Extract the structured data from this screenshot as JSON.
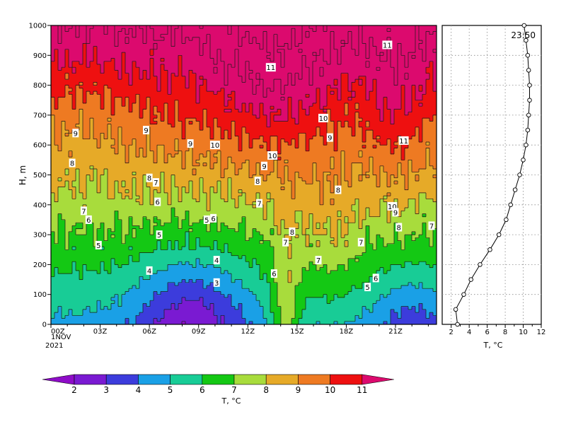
{
  "chart_data": [
    {
      "type": "heatmap",
      "ylabel": "H, m",
      "y_ticks": [
        0,
        100,
        200,
        300,
        400,
        500,
        600,
        700,
        800,
        900,
        1000
      ],
      "ylim": [
        0,
        1000
      ],
      "x_ticks": [
        "00Z",
        "03Z",
        "06Z",
        "09Z",
        "12Z",
        "15Z",
        "18Z",
        "21Z"
      ],
      "x_date_line1": "1NOV",
      "x_date_line2": "2021",
      "xlim_hours": [
        0,
        23.5
      ],
      "contour_labels": [
        {
          "t": 1.5,
          "h": 640,
          "v": "9"
        },
        {
          "t": 1.3,
          "h": 540,
          "v": "8"
        },
        {
          "t": 2.0,
          "h": 380,
          "v": "7"
        },
        {
          "t": 2.3,
          "h": 350,
          "v": "6"
        },
        {
          "t": 2.9,
          "h": 265,
          "v": "5"
        },
        {
          "t": 5.8,
          "h": 650,
          "v": "9"
        },
        {
          "t": 6.0,
          "h": 490,
          "v": "8"
        },
        {
          "t": 6.4,
          "h": 475,
          "v": "7"
        },
        {
          "t": 6.5,
          "h": 410,
          "v": "6"
        },
        {
          "t": 6.6,
          "h": 300,
          "v": "5"
        },
        {
          "t": 6.0,
          "h": 180,
          "v": "4"
        },
        {
          "t": 8.5,
          "h": 605,
          "v": "9"
        },
        {
          "t": 10.0,
          "h": 600,
          "v": "10"
        },
        {
          "t": 9.5,
          "h": 350,
          "v": "5"
        },
        {
          "t": 9.9,
          "h": 355,
          "v": "6"
        },
        {
          "t": 10.1,
          "h": 215,
          "v": "4"
        },
        {
          "t": 10.1,
          "h": 140,
          "v": "3"
        },
        {
          "t": 13.4,
          "h": 860,
          "v": "11"
        },
        {
          "t": 12.6,
          "h": 480,
          "v": "8"
        },
        {
          "t": 12.7,
          "h": 405,
          "v": "7"
        },
        {
          "t": 13.0,
          "h": 530,
          "v": "9"
        },
        {
          "t": 13.5,
          "h": 565,
          "v": "10"
        },
        {
          "t": 13.6,
          "h": 170,
          "v": "6"
        },
        {
          "t": 14.3,
          "h": 275,
          "v": "7"
        },
        {
          "t": 14.7,
          "h": 310,
          "v": "8"
        },
        {
          "t": 16.6,
          "h": 690,
          "v": "10"
        },
        {
          "t": 17.0,
          "h": 625,
          "v": "9"
        },
        {
          "t": 17.5,
          "h": 450,
          "v": "8"
        },
        {
          "t": 18.9,
          "h": 275,
          "v": "7"
        },
        {
          "t": 16.3,
          "h": 215,
          "v": "7"
        },
        {
          "t": 19.3,
          "h": 125,
          "v": "5"
        },
        {
          "t": 19.8,
          "h": 155,
          "v": "6"
        },
        {
          "t": 20.5,
          "h": 935,
          "v": "11"
        },
        {
          "t": 20.8,
          "h": 395,
          "v": "10"
        },
        {
          "t": 21.0,
          "h": 375,
          "v": "9"
        },
        {
          "t": 21.2,
          "h": 325,
          "v": "8"
        },
        {
          "t": 21.5,
          "h": 615,
          "v": "11"
        },
        {
          "t": 23.2,
          "h": 330,
          "v": "7"
        }
      ]
    },
    {
      "type": "line",
      "title": "23:50",
      "xlabel": "T, °C",
      "x_ticks": [
        2,
        4,
        6,
        8,
        10,
        12
      ],
      "xlim": [
        1,
        12
      ],
      "ylim": [
        0,
        1000
      ],
      "h": [
        0,
        50,
        100,
        150,
        200,
        250,
        300,
        350,
        400,
        450,
        500,
        550,
        600,
        650,
        700,
        750,
        800,
        850,
        900,
        950,
        1000
      ],
      "t": [
        2.7,
        2.5,
        3.4,
        4.2,
        5.2,
        6.3,
        7.3,
        8.1,
        8.6,
        9.1,
        9.6,
        10.0,
        10.3,
        10.5,
        10.6,
        10.7,
        10.7,
        10.6,
        10.5,
        10.3,
        10.1
      ]
    }
  ],
  "colorbar": {
    "labels": [
      "2",
      "3",
      "4",
      "5",
      "6",
      "7",
      "8",
      "9",
      "10",
      "11"
    ],
    "colors": [
      "#8e0cc8",
      "#7a1ad2",
      "#3c3cdc",
      "#1aa0e6",
      "#18cc96",
      "#14c814",
      "#a8dc3c",
      "#e6aa28",
      "#ee7a22",
      "#ee1010",
      "#dc0a6e"
    ],
    "label": "T, °C"
  },
  "palette": {
    "lt2": "#8e0cc8",
    "2_3": "#7a1ad2",
    "3_4": "#3c3cdc",
    "4_5": "#1aa0e6",
    "5_6": "#18cc96",
    "6_7": "#14c814",
    "7_8": "#a8dc3c",
    "8_9": "#e6aa28",
    "9_10": "#ee7a22",
    "10_11": "#ee1010",
    "gt11": "#dc0a6e"
  }
}
